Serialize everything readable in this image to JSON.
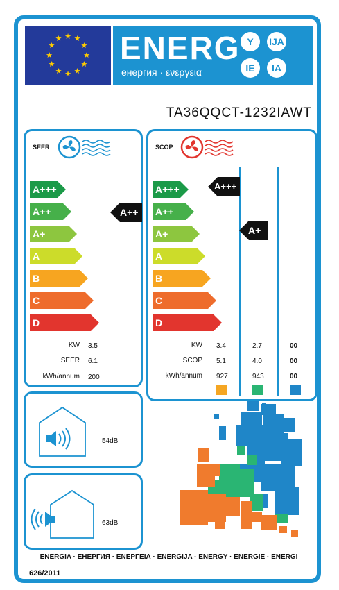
{
  "header": {
    "energ": "ENERG",
    "subtitle": "енергия · ενεργεια",
    "suffixes": [
      "Y",
      "IJA",
      "IE",
      "IA"
    ]
  },
  "model": "TA36QQCT-1232IAWT",
  "seer_panel": {
    "label": "SEER",
    "bars": [
      "A+++",
      "A++",
      "A+",
      "A",
      "B",
      "C",
      "D"
    ],
    "rating": "A++",
    "rows": [
      {
        "label": "KW",
        "value": "3.5"
      },
      {
        "label": "SEER",
        "value": "6.1"
      },
      {
        "label": "kWh/annum",
        "value": "200"
      }
    ]
  },
  "scop_panel": {
    "label": "SCOP",
    "bars": [
      "A+++",
      "A++",
      "A+",
      "A",
      "B",
      "C",
      "D"
    ],
    "rating_col1": "A+++",
    "rating_col2": "A+",
    "rows": [
      {
        "label": "KW",
        "values": [
          "3.4",
          "2.7",
          "00"
        ]
      },
      {
        "label": "SCOP",
        "values": [
          "5.1",
          "4.0",
          "00"
        ]
      },
      {
        "label": "kWh/annum",
        "values": [
          "927",
          "943",
          "00"
        ]
      }
    ],
    "zone_colors": [
      "#f5a623",
      "#2ab573",
      "#1f86c8"
    ]
  },
  "noise": {
    "indoor": "54dB",
    "outdoor": "63dB"
  },
  "footer": {
    "languages": "ENERGIA · ЕНЕРГИЯ · ΕΝΕΡΓΕΙΑ · ENERGIJA · ENERGY · ENERGIE · ENERGI",
    "dash": "–",
    "regulation": "626/2011"
  },
  "colors": {
    "frame": "#1c93d1",
    "flag": "#233a9a",
    "class_colors": [
      "#1b9a48",
      "#46b04a",
      "#8dc63f",
      "#ccdc2a",
      "#f7a520",
      "#ee6c2c",
      "#e2352e"
    ]
  }
}
